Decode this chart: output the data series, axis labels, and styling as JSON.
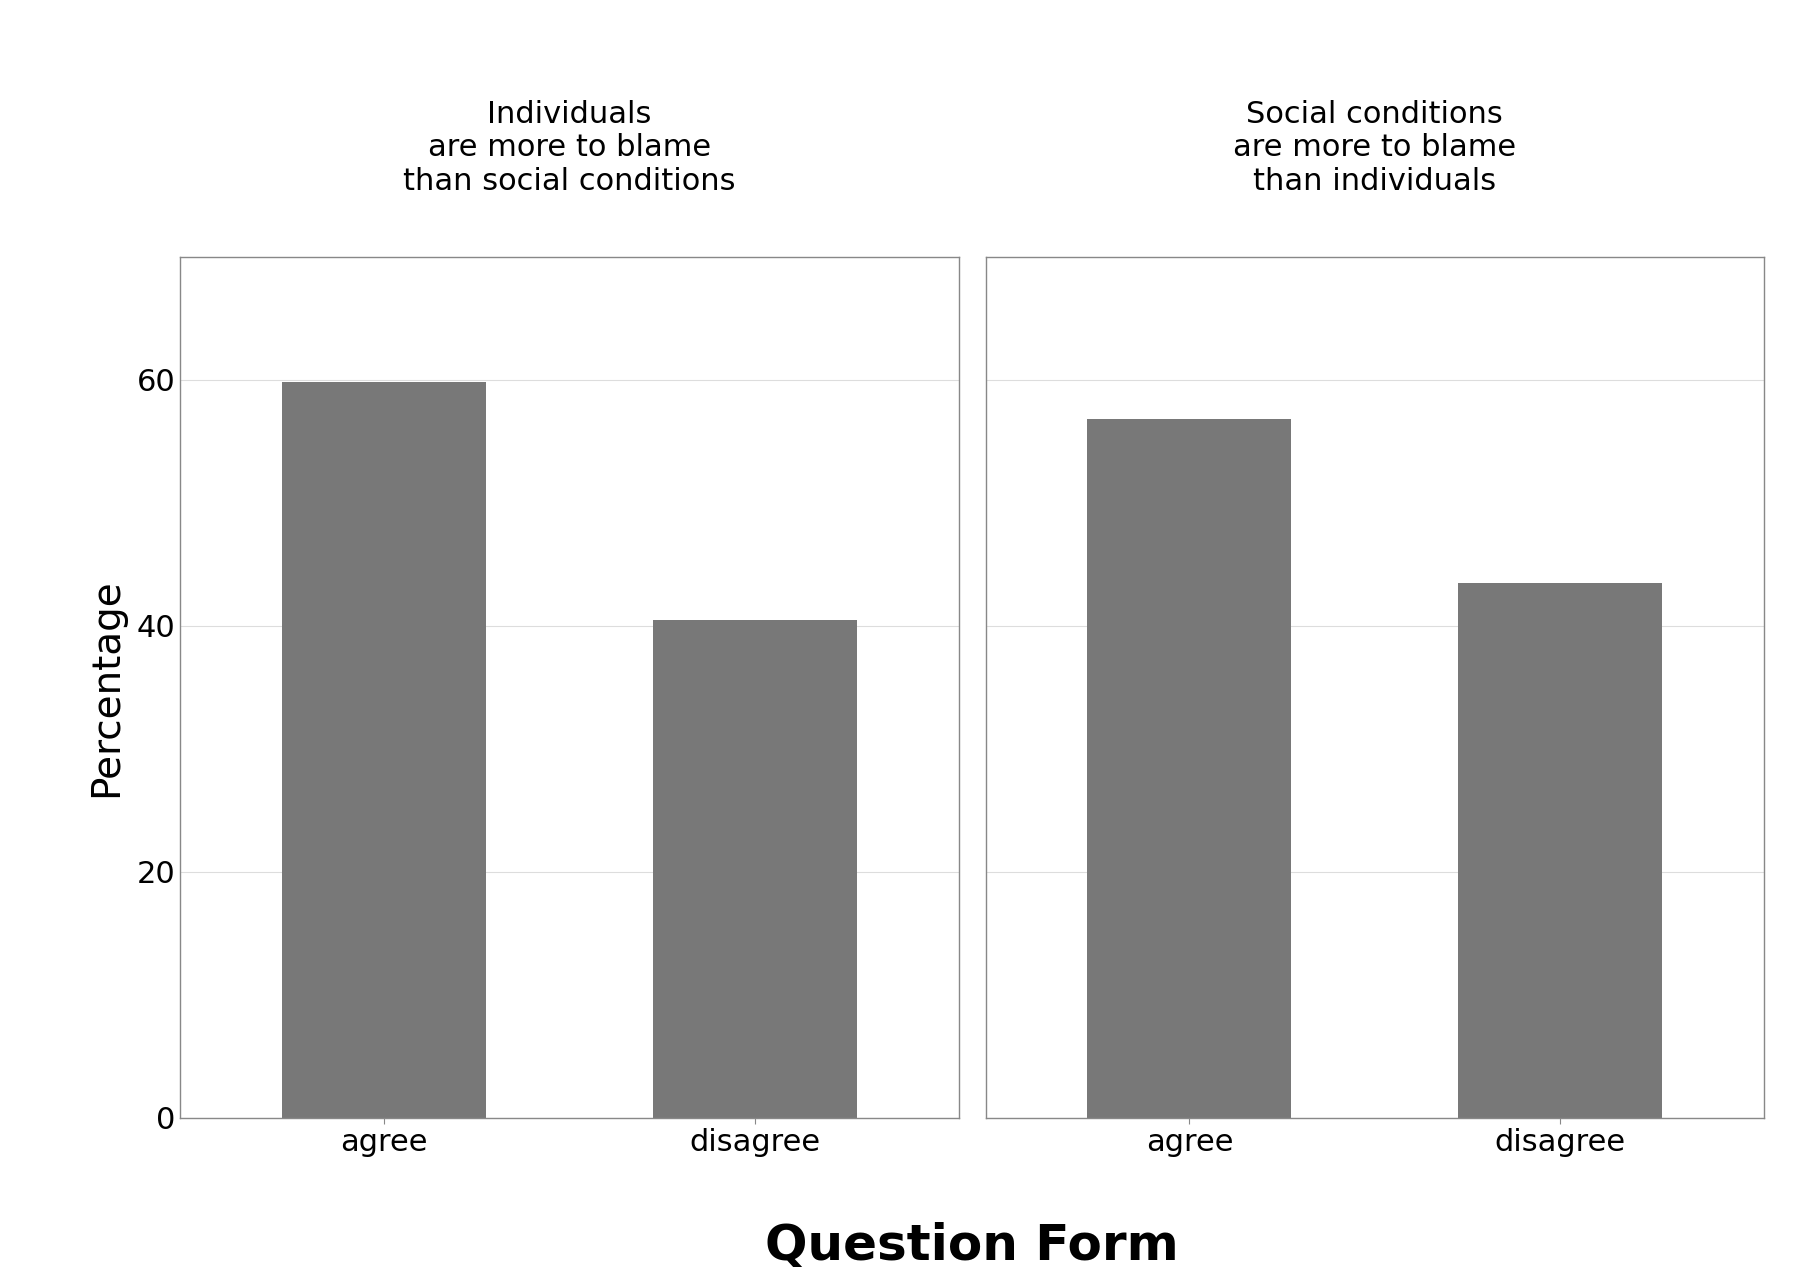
{
  "panel1_title": "Individuals\nare more to blame\nthan social conditions",
  "panel2_title": "Social conditions\nare more to blame\nthan individuals",
  "panel1_values": [
    59.8,
    40.5
  ],
  "panel2_values": [
    56.8,
    43.5
  ],
  "categories": [
    "agree",
    "disagree"
  ],
  "bar_color": "#787878",
  "ylabel": "Percentage",
  "xlabel": "Question Form",
  "ylim": [
    0,
    70
  ],
  "yticks": [
    0,
    20,
    40,
    60
  ],
  "background_color": "#ffffff",
  "panel_header_color": "#c8c8c8",
  "axis_label_fontsize": 28,
  "tick_fontsize": 22,
  "panel_title_fontsize": 22,
  "xlabel_fontsize": 36,
  "bar_width": 0.55,
  "fig_bg_color": "#ffffff",
  "spine_color": "#888888",
  "grid_color": "#dddddd"
}
